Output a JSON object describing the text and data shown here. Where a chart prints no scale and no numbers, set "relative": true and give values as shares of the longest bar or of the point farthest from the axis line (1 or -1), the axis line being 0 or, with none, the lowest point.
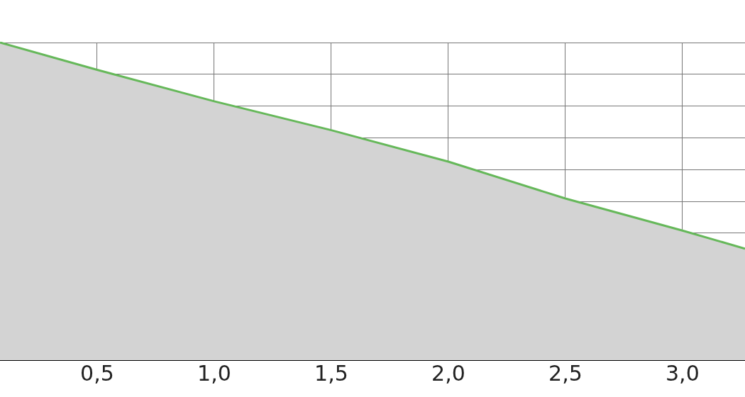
{
  "chart_data": {
    "type": "area",
    "relative": true,
    "x": [
      0.085,
      0.5,
      1.0,
      1.5,
      2.0,
      2.5,
      3.0,
      3.267
    ],
    "series": [
      {
        "color": "#66b85a",
        "values": [
          1,
          0.914,
          0.815,
          0.724,
          0.625,
          0.509,
          0.408,
          0.351
        ]
      }
    ],
    "xlim": [
      0.085,
      3.267
    ],
    "xticks": [
      {
        "value": 0.5,
        "label": "0,5"
      },
      {
        "value": 1.0,
        "label": "1,0"
      },
      {
        "value": 1.5,
        "label": "1,5"
      },
      {
        "value": 2.0,
        "label": "2,0"
      },
      {
        "value": 2.5,
        "label": "2,5"
      },
      {
        "value": 3.0,
        "label": "3,0"
      }
    ],
    "grid": true,
    "legend": false,
    "tick_labels": "x"
  }
}
